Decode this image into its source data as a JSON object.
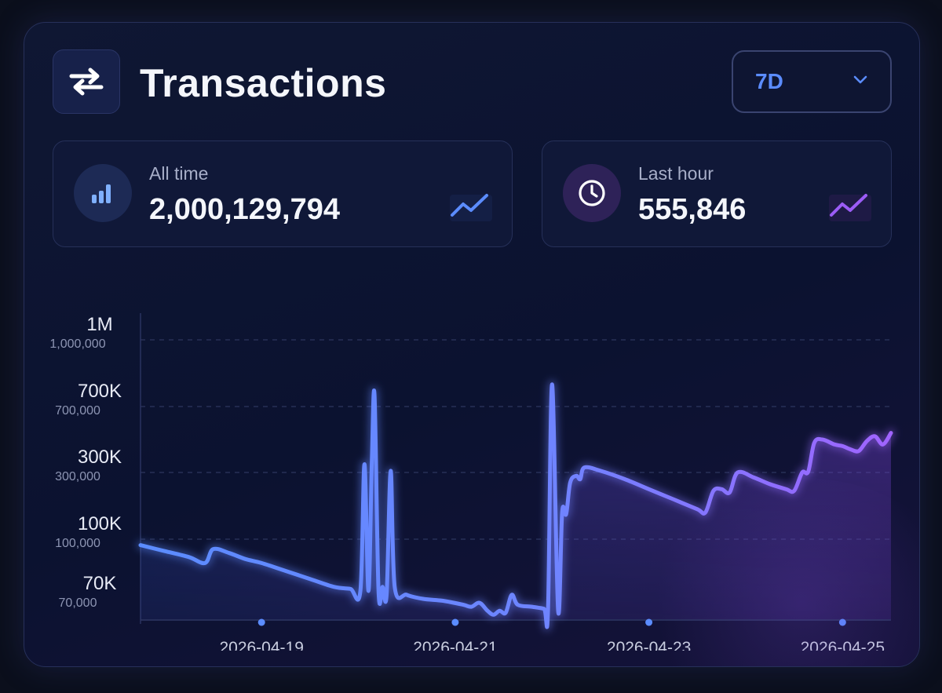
{
  "header": {
    "icon": "swap-arrows-icon",
    "title": "Transactions",
    "range": {
      "selected": "7D",
      "icon": "chevron-down-icon"
    }
  },
  "stats": [
    {
      "label": "All time",
      "value": "2,000,129,794",
      "icon": "bar-chart-icon",
      "trend_icon": "trend-up-icon",
      "accent": "#5b8cff"
    },
    {
      "label": "Last hour",
      "value": "555,846",
      "icon": "clock-icon",
      "trend_icon": "trend-up-icon",
      "accent": "#9b5cf6"
    }
  ],
  "chart_data": {
    "type": "area",
    "y_scale": "nonlinear",
    "y_ticks": [
      {
        "value": 1000000,
        "short": "1M",
        "full": "1,000,000"
      },
      {
        "value": 700000,
        "short": "700K",
        "full": "700,000"
      },
      {
        "value": 300000,
        "short": "300K",
        "full": "300,000"
      },
      {
        "value": 100000,
        "short": "100K",
        "full": "100,000"
      },
      {
        "value": 70000,
        "short": "70K",
        "full": "70,000"
      }
    ],
    "x_ticks": [
      "2026-04-19",
      "2026-04-21",
      "2026-04-23",
      "2026-04-25"
    ],
    "x_range": [
      "2026-04-18T06:00",
      "2026-04-26T00:00"
    ],
    "grid": true,
    "colors": {
      "line_start": "#5b8cff",
      "line_end": "#a064ff"
    },
    "series": [
      {
        "points": [
          [
            "2026-04-18T06:00",
            97000
          ],
          [
            "2026-04-18T12:00",
            94000
          ],
          [
            "2026-04-18T18:00",
            91000
          ],
          [
            "2026-04-18T22:00",
            88000
          ],
          [
            "2026-04-19T00:00",
            95000
          ],
          [
            "2026-04-19T04:00",
            93000
          ],
          [
            "2026-04-19T08:00",
            90000
          ],
          [
            "2026-04-19T12:00",
            88000
          ],
          [
            "2026-04-19T18:00",
            84000
          ],
          [
            "2026-04-20T00:00",
            80000
          ],
          [
            "2026-04-20T06:00",
            76000
          ],
          [
            "2026-04-20T10:00",
            75000
          ],
          [
            "2026-04-20T12:30",
            74000
          ],
          [
            "2026-04-20T13:30",
            350000
          ],
          [
            "2026-04-20T14:30",
            74000
          ],
          [
            "2026-04-20T15:20",
            370000
          ],
          [
            "2026-04-20T16:00",
            750000
          ],
          [
            "2026-04-20T17:00",
            74000
          ],
          [
            "2026-04-20T18:00",
            76000
          ],
          [
            "2026-04-20T19:00",
            72000
          ],
          [
            "2026-04-20T20:00",
            310000
          ],
          [
            "2026-04-20T21:00",
            76000
          ],
          [
            "2026-04-21T00:00",
            72000
          ],
          [
            "2026-04-21T04:00",
            70000
          ],
          [
            "2026-04-21T09:00",
            69000
          ],
          [
            "2026-04-21T14:00",
            67000
          ],
          [
            "2026-04-21T16:00",
            66000
          ],
          [
            "2026-04-21T18:00",
            68000
          ],
          [
            "2026-04-21T20:00",
            64000
          ],
          [
            "2026-04-21T21:30",
            62000
          ],
          [
            "2026-04-21T23:00",
            64000
          ],
          [
            "2026-04-22T00:30",
            63000
          ],
          [
            "2026-04-22T02:00",
            72000
          ],
          [
            "2026-04-22T03:30",
            67000
          ],
          [
            "2026-04-22T07:00",
            66000
          ],
          [
            "2026-04-22T10:00",
            65000
          ],
          [
            "2026-04-22T11:00",
            64000
          ],
          [
            "2026-04-22T12:00",
            800000
          ],
          [
            "2026-04-22T13:30",
            64000
          ],
          [
            "2026-04-22T14:30",
            180000
          ],
          [
            "2026-04-22T15:30",
            175000
          ],
          [
            "2026-04-22T16:30",
            270000
          ],
          [
            "2026-04-22T18:00",
            290000
          ],
          [
            "2026-04-22T19:00",
            280000
          ],
          [
            "2026-04-22T20:00",
            330000
          ],
          [
            "2026-04-23T00:00",
            310000
          ],
          [
            "2026-04-23T06:00",
            280000
          ],
          [
            "2026-04-23T12:00",
            250000
          ],
          [
            "2026-04-23T18:00",
            220000
          ],
          [
            "2026-04-24T00:00",
            190000
          ],
          [
            "2026-04-24T02:00",
            180000
          ],
          [
            "2026-04-24T04:00",
            245000
          ],
          [
            "2026-04-24T06:00",
            250000
          ],
          [
            "2026-04-24T08:00",
            240000
          ],
          [
            "2026-04-24T10:00",
            300000
          ],
          [
            "2026-04-24T14:00",
            285000
          ],
          [
            "2026-04-24T18:00",
            265000
          ],
          [
            "2026-04-24T22:00",
            250000
          ],
          [
            "2026-04-25T00:00",
            245000
          ],
          [
            "2026-04-25T02:00",
            300000
          ],
          [
            "2026-04-25T03:30",
            305000
          ],
          [
            "2026-04-25T05:00",
            480000
          ],
          [
            "2026-04-25T07:00",
            500000
          ],
          [
            "2026-04-25T10:00",
            470000
          ],
          [
            "2026-04-25T12:00",
            460000
          ],
          [
            "2026-04-25T14:00",
            440000
          ],
          [
            "2026-04-25T16:00",
            430000
          ],
          [
            "2026-04-25T18:00",
            490000
          ],
          [
            "2026-04-25T20:00",
            520000
          ],
          [
            "2026-04-25T22:00",
            470000
          ],
          [
            "2026-04-26T00:00",
            540000
          ]
        ]
      }
    ]
  }
}
